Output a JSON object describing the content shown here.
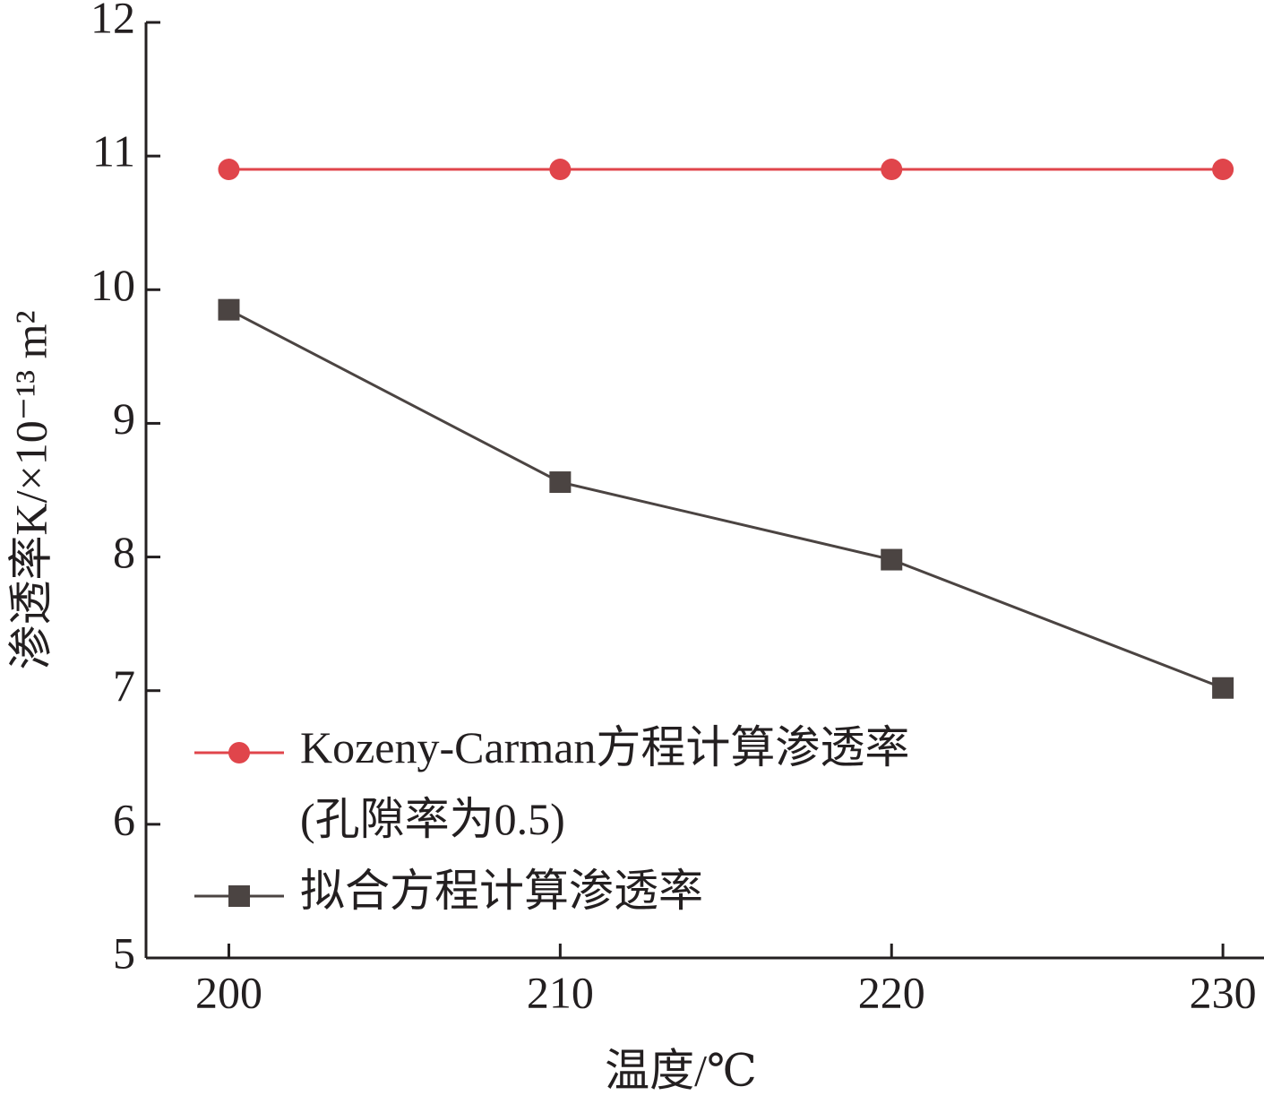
{
  "chart_data": {
    "type": "line",
    "x_label": "温度/℃",
    "y_label": "渗透率K/×10⁻¹³ m²",
    "x": [
      200,
      210,
      220,
      230
    ],
    "series": [
      {
        "name": "Kozeny-Carman方程计算渗透率\n(孔隙率为0.5)",
        "color": "#e0454b",
        "marker": "circle",
        "values": [
          10.9,
          10.9,
          10.9,
          10.9
        ]
      },
      {
        "name": "拟合方程计算渗透率",
        "color": "#4b4442",
        "marker": "square",
        "values": [
          9.85,
          8.56,
          7.98,
          7.02
        ]
      }
    ],
    "xlim": [
      197.5,
      231.24
    ],
    "xticks": [
      200,
      210,
      220,
      230
    ],
    "ylim": [
      5,
      12
    ],
    "yticks": [
      5,
      6,
      7,
      8,
      9,
      10,
      11,
      12
    ],
    "grid": false,
    "legend": "lower left"
  }
}
